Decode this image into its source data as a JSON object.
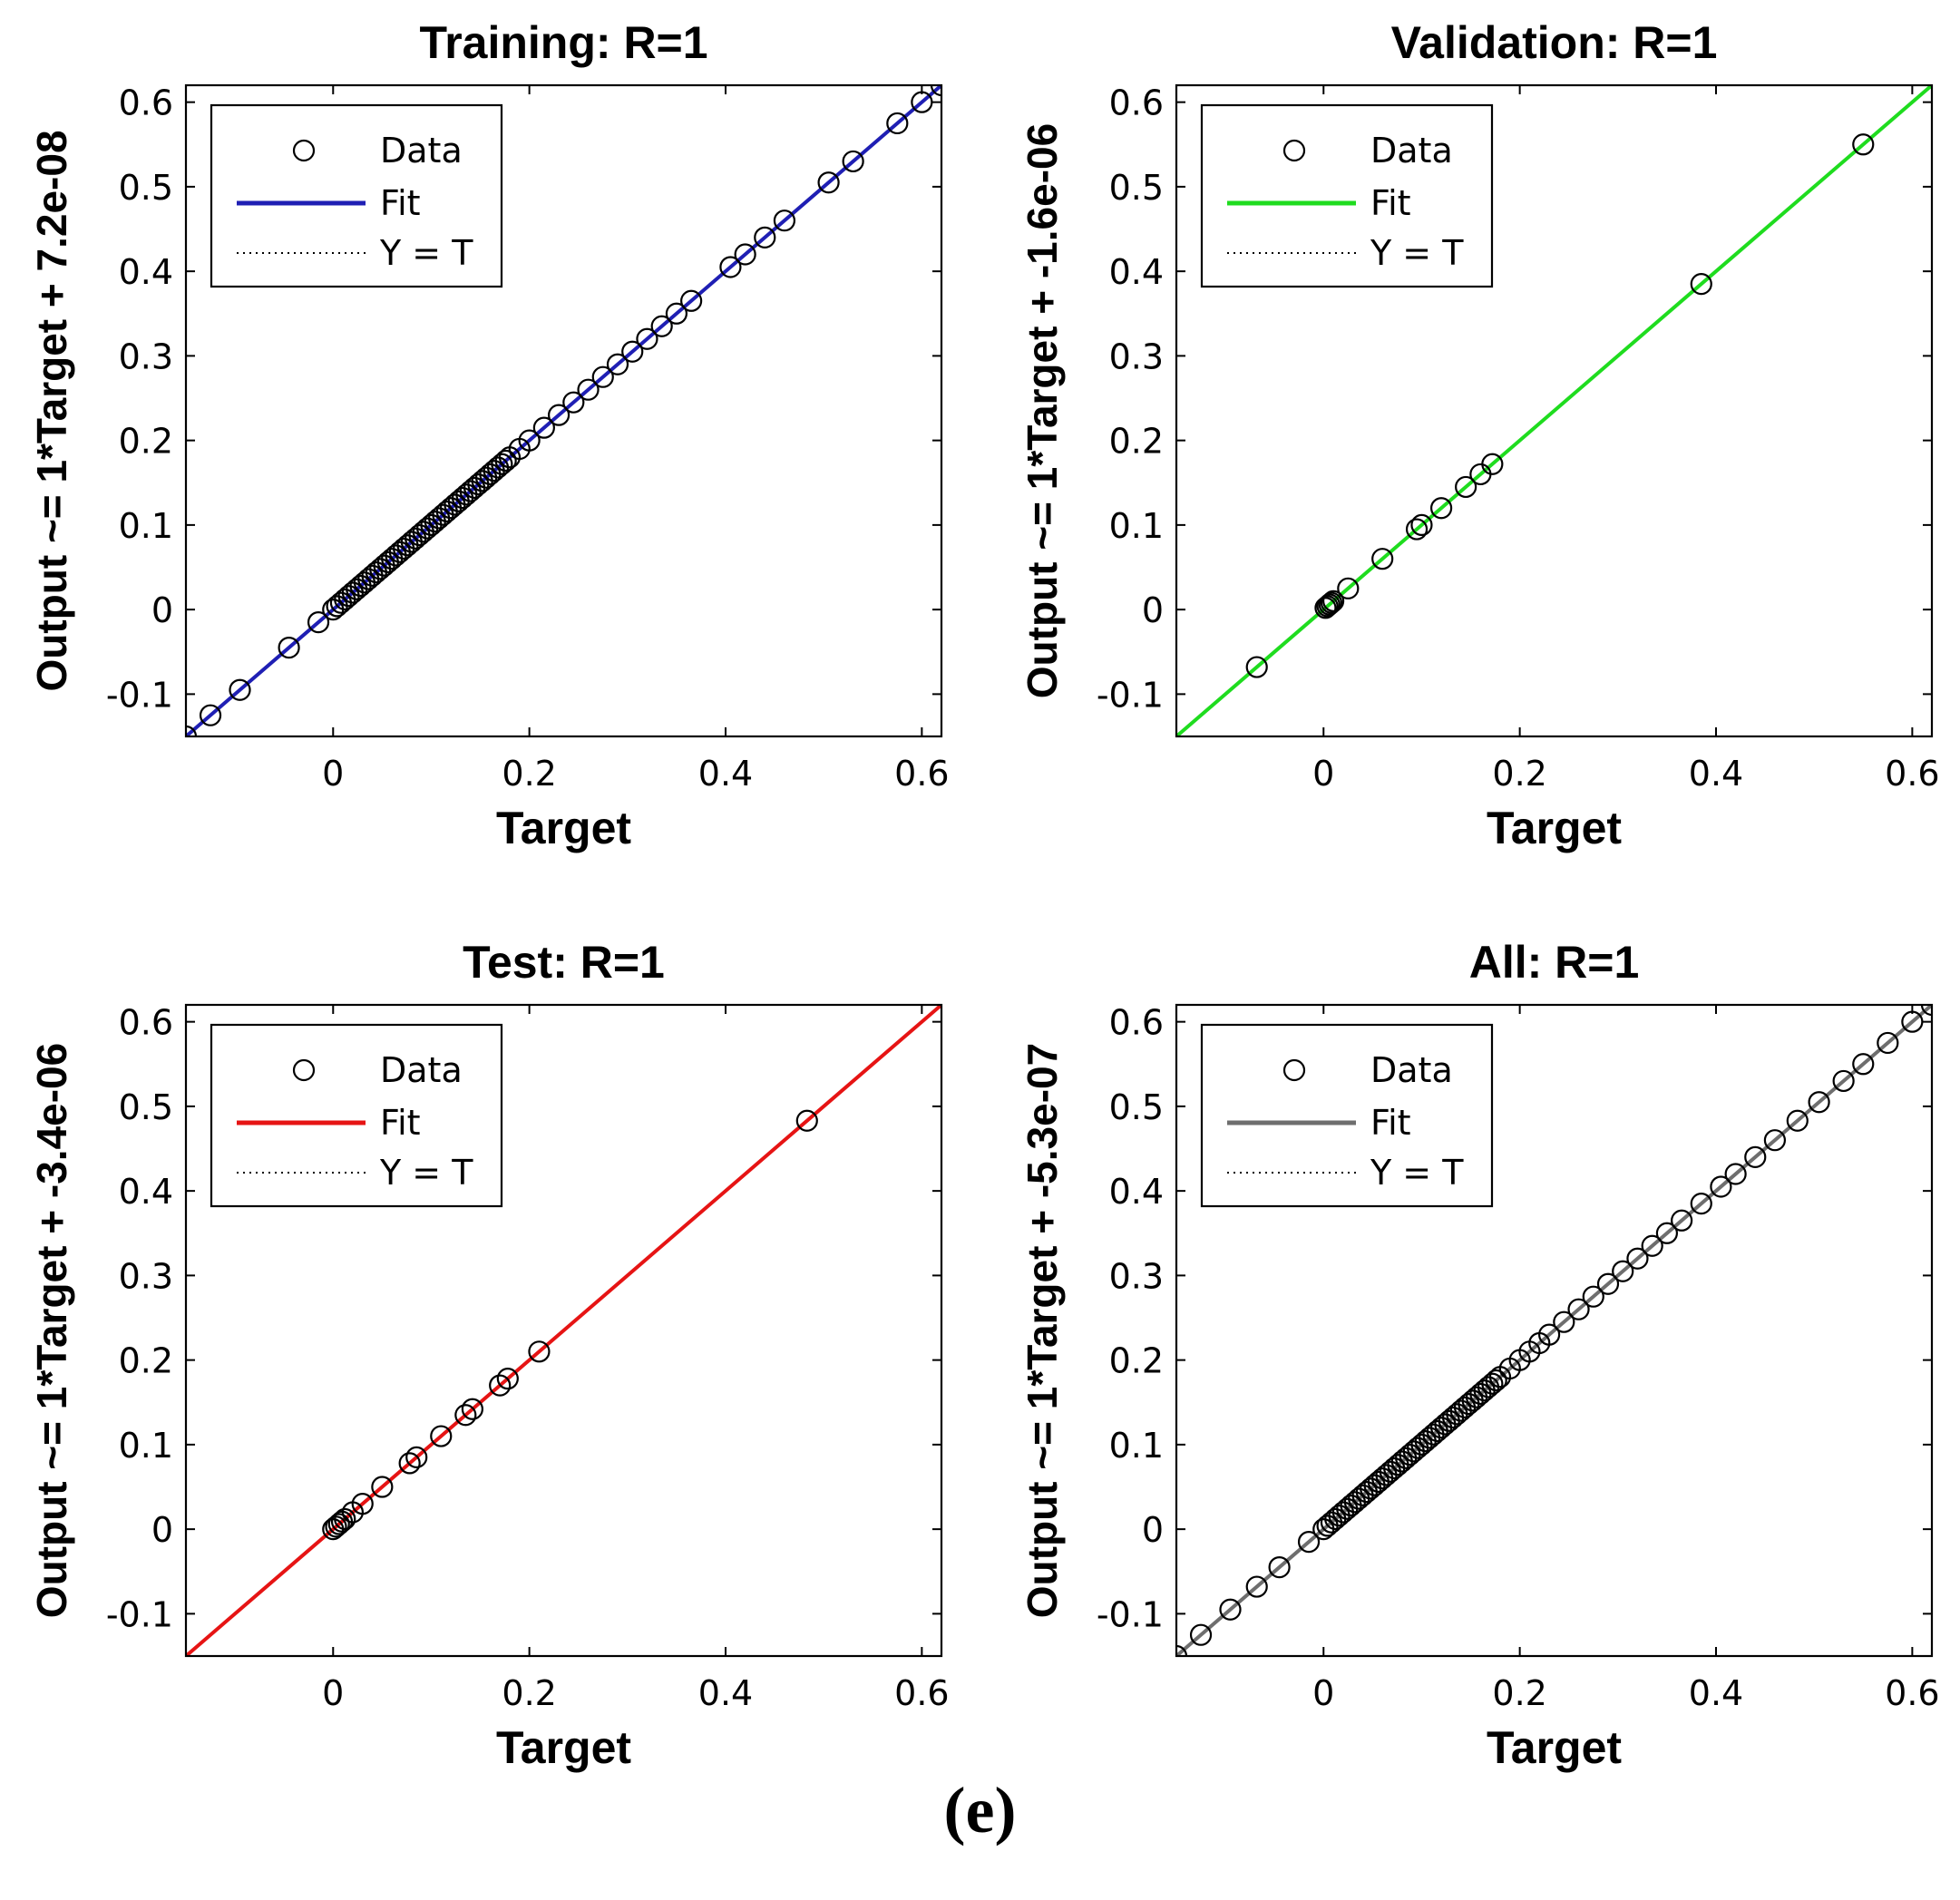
{
  "figure": {
    "caption": "(e)"
  },
  "chart_data": [
    {
      "type": "scatter",
      "title": "Training: R=1",
      "xlabel": "Target",
      "ylabel": "Output ~= 1*Target + 7.2e-08",
      "xlim": [
        -0.15,
        0.62
      ],
      "ylim": [
        -0.15,
        0.62
      ],
      "xticks": [
        0,
        0.2,
        0.4,
        0.6
      ],
      "xtick_labels": [
        "0",
        "0.2",
        "0.4",
        "0.6"
      ],
      "yticks": [
        -0.1,
        0,
        0.1,
        0.2,
        0.3,
        0.4,
        0.5,
        0.6
      ],
      "ytick_labels": [
        "-0.1",
        "0",
        "0.1",
        "0.2",
        "0.3",
        "0.4",
        "0.5",
        "0.6"
      ],
      "fit_color": "#1f1fb4",
      "fit": {
        "slope": 1,
        "intercept": 7.2e-08
      },
      "legend": [
        "Data",
        "Fit",
        "Y = T"
      ],
      "points": [
        -0.15,
        -0.125,
        -0.095,
        -0.045,
        -0.015,
        0.0,
        0.004,
        0.008,
        0.012,
        0.016,
        0.02,
        0.024,
        0.028,
        0.032,
        0.036,
        0.04,
        0.044,
        0.048,
        0.052,
        0.056,
        0.06,
        0.064,
        0.068,
        0.072,
        0.076,
        0.08,
        0.084,
        0.088,
        0.092,
        0.096,
        0.1,
        0.104,
        0.108,
        0.112,
        0.116,
        0.12,
        0.124,
        0.128,
        0.132,
        0.136,
        0.14,
        0.144,
        0.148,
        0.152,
        0.156,
        0.16,
        0.164,
        0.168,
        0.172,
        0.176,
        0.18,
        0.19,
        0.2,
        0.215,
        0.23,
        0.245,
        0.26,
        0.275,
        0.29,
        0.305,
        0.32,
        0.335,
        0.35,
        0.365,
        0.405,
        0.42,
        0.44,
        0.46,
        0.505,
        0.53,
        0.575,
        0.6,
        0.62
      ]
    },
    {
      "type": "scatter",
      "title": "Validation: R=1",
      "xlabel": "Target",
      "ylabel": "Output ~= 1*Target + -1.6e-06",
      "xlim": [
        -0.15,
        0.62
      ],
      "ylim": [
        -0.15,
        0.62
      ],
      "xticks": [
        0,
        0.2,
        0.4,
        0.6
      ],
      "xtick_labels": [
        "0",
        "0.2",
        "0.4",
        "0.6"
      ],
      "yticks": [
        -0.1,
        0,
        0.1,
        0.2,
        0.3,
        0.4,
        0.5,
        0.6
      ],
      "ytick_labels": [
        "-0.1",
        "0",
        "0.1",
        "0.2",
        "0.3",
        "0.4",
        "0.5",
        "0.6"
      ],
      "fit_color": "#1fdc1f",
      "fit": {
        "slope": 1,
        "intercept": -1.6e-06
      },
      "legend": [
        "Data",
        "Fit",
        "Y = T"
      ],
      "points": [
        -0.068,
        0.002,
        0.004,
        0.006,
        0.008,
        0.01,
        0.025,
        0.06,
        0.095,
        0.1,
        0.12,
        0.145,
        0.16,
        0.172,
        0.385,
        0.55
      ]
    },
    {
      "type": "scatter",
      "title": "Test: R=1",
      "xlabel": "Target",
      "ylabel": "Output ~= 1*Target + -3.4e-06",
      "xlim": [
        -0.15,
        0.62
      ],
      "ylim": [
        -0.15,
        0.62
      ],
      "xticks": [
        0,
        0.2,
        0.4,
        0.6
      ],
      "xtick_labels": [
        "0",
        "0.2",
        "0.4",
        "0.6"
      ],
      "yticks": [
        -0.1,
        0,
        0.1,
        0.2,
        0.3,
        0.4,
        0.5,
        0.6
      ],
      "ytick_labels": [
        "-0.1",
        "0",
        "0.1",
        "0.2",
        "0.3",
        "0.4",
        "0.5",
        "0.6"
      ],
      "fit_color": "#e61414",
      "fit": {
        "slope": 1,
        "intercept": -3.4e-06
      },
      "legend": [
        "Data",
        "Fit",
        "Y = T"
      ],
      "points": [
        0.0,
        0.003,
        0.006,
        0.009,
        0.012,
        0.02,
        0.03,
        0.05,
        0.078,
        0.085,
        0.11,
        0.135,
        0.142,
        0.17,
        0.178,
        0.21,
        0.483
      ]
    },
    {
      "type": "scatter",
      "title": "All: R=1",
      "xlabel": "Target",
      "ylabel": "Output ~= 1*Target + -5.3e-07",
      "xlim": [
        -0.15,
        0.62
      ],
      "ylim": [
        -0.15,
        0.62
      ],
      "xticks": [
        0,
        0.2,
        0.4,
        0.6
      ],
      "xtick_labels": [
        "0",
        "0.2",
        "0.4",
        "0.6"
      ],
      "yticks": [
        -0.1,
        0,
        0.1,
        0.2,
        0.3,
        0.4,
        0.5,
        0.6
      ],
      "ytick_labels": [
        "-0.1",
        "0",
        "0.1",
        "0.2",
        "0.3",
        "0.4",
        "0.5",
        "0.6"
      ],
      "fit_color": "#6e6e6e",
      "fit": {
        "slope": 1,
        "intercept": -5.3e-07
      },
      "legend": [
        "Data",
        "Fit",
        "Y = T"
      ],
      "points": [
        -0.15,
        -0.125,
        -0.095,
        -0.068,
        -0.045,
        -0.015,
        0.0,
        0.004,
        0.008,
        0.012,
        0.016,
        0.02,
        0.024,
        0.028,
        0.032,
        0.036,
        0.04,
        0.044,
        0.048,
        0.052,
        0.056,
        0.06,
        0.064,
        0.068,
        0.072,
        0.076,
        0.08,
        0.084,
        0.088,
        0.092,
        0.096,
        0.1,
        0.104,
        0.108,
        0.112,
        0.116,
        0.12,
        0.124,
        0.128,
        0.132,
        0.136,
        0.14,
        0.144,
        0.148,
        0.152,
        0.156,
        0.16,
        0.164,
        0.168,
        0.172,
        0.176,
        0.18,
        0.19,
        0.2,
        0.21,
        0.22,
        0.23,
        0.245,
        0.26,
        0.275,
        0.29,
        0.305,
        0.32,
        0.335,
        0.35,
        0.365,
        0.385,
        0.405,
        0.42,
        0.44,
        0.46,
        0.483,
        0.505,
        0.53,
        0.55,
        0.575,
        0.6,
        0.62
      ]
    }
  ]
}
